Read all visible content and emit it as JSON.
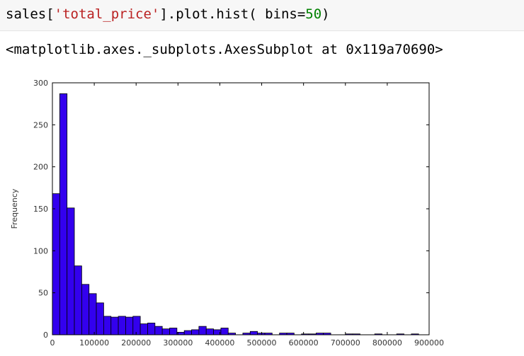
{
  "notebook": {
    "code_parts": [
      {
        "text": "sales[",
        "kind": "plain"
      },
      {
        "text": "'total_price'",
        "kind": "str"
      },
      {
        "text": "].plot.hist( bins=",
        "kind": "plain"
      },
      {
        "text": "50",
        "kind": "num"
      },
      {
        "text": ")",
        "kind": "plain"
      }
    ],
    "output_text": "<matplotlib.axes._subplots.AxesSubplot at 0x119a70690>"
  },
  "colors": {
    "bar_fill": "#3300ee",
    "bar_edge": "#000000"
  },
  "chart_data": {
    "type": "bar",
    "ylabel": "Frequency",
    "xlabel": "",
    "xlim": [
      0,
      900000
    ],
    "ylim": [
      0,
      300
    ],
    "xticks": [
      "0",
      "100000",
      "200000",
      "300000",
      "400000",
      "500000",
      "600000",
      "700000",
      "800000",
      "900000"
    ],
    "yticks": [
      "0",
      "50",
      "100",
      "150",
      "200",
      "250",
      "300"
    ],
    "bin_width": 17500,
    "bin_start": 0,
    "values": [
      168,
      287,
      151,
      82,
      60,
      49,
      38,
      22,
      21,
      22,
      21,
      22,
      13,
      14,
      10,
      7,
      8,
      3,
      5,
      6,
      10,
      7,
      6,
      8,
      2,
      0,
      2,
      4,
      2,
      2,
      0,
      2,
      2,
      0,
      1,
      1,
      2,
      2,
      0,
      0,
      1,
      1,
      0,
      0,
      1,
      0,
      0,
      1,
      0,
      1
    ]
  }
}
